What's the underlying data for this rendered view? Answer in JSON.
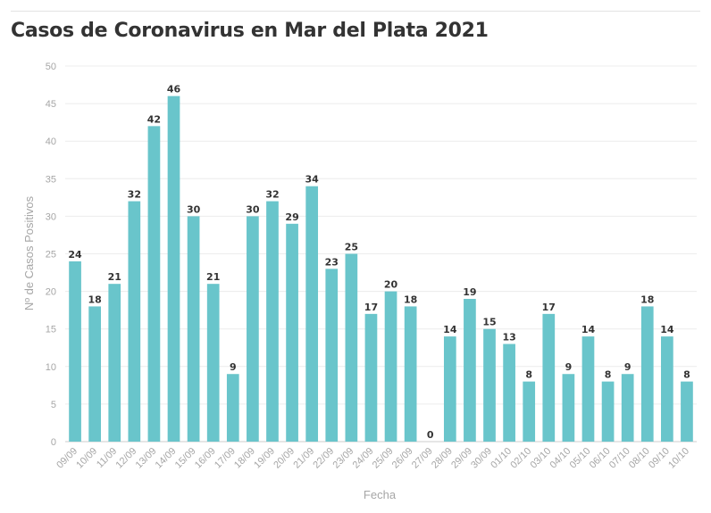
{
  "chart_data": {
    "type": "bar",
    "title": "Casos de Coronavirus en Mar del Plata 2021",
    "xlabel": "Fecha",
    "ylabel": "Nº de Casos Positivos",
    "ylim": [
      0,
      50
    ],
    "yticks": [
      0,
      5,
      10,
      15,
      20,
      25,
      30,
      35,
      40,
      45,
      50
    ],
    "grid": true,
    "legend": "none",
    "bar_color": "#69c5cb",
    "categories": [
      "09/09",
      "10/09",
      "11/09",
      "12/09",
      "13/09",
      "14/09",
      "15/09",
      "16/09",
      "17/09",
      "18/09",
      "19/09",
      "20/09",
      "21/09",
      "22/09",
      "23/09",
      "24/09",
      "25/09",
      "26/09",
      "27/09",
      "28/09",
      "29/09",
      "30/09",
      "01/10",
      "02/10",
      "03/10",
      "04/10",
      "05/10",
      "06/10",
      "07/10",
      "08/10",
      "09/10",
      "10/10"
    ],
    "values": [
      24,
      18,
      21,
      32,
      42,
      46,
      30,
      21,
      9,
      30,
      32,
      29,
      34,
      23,
      25,
      17,
      20,
      18,
      0,
      14,
      19,
      15,
      13,
      8,
      17,
      9,
      14,
      8,
      9,
      18,
      14,
      8
    ]
  }
}
